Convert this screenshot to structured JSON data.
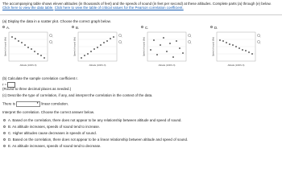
{
  "intro": "The accompanying table shows eleven altitudes (in thousands of feet) and the speeds of sound (in feet per second) at these altitudes. Complete parts (a) through (e) below.",
  "links": [
    "Click here to view the data table.",
    "Click here to view the table of critical values for the Pearson correlation coefficient."
  ],
  "part_a": {
    "prompt": "(a) Display the data in a scatter plot. Choose the correct graph below.",
    "options": [
      "A.",
      "B.",
      "C.",
      "D."
    ],
    "y_label": "Speed of sound (ft/s)",
    "x_label": "Altitude (1000's ft)"
  },
  "part_b": {
    "prompt": "(b) Calculate the sample correlation coefficient r.",
    "r_label": "r =",
    "note": "(Round to three decimal places as needed.)"
  },
  "part_c": {
    "prompt": "(c) Describe the type of correlation, if any, and interpret the correlation in the context of the data.",
    "sentence_start": "There is",
    "sentence_end": "linear correlation.",
    "interpret_prompt": "Interpret the correlation. Choose the correct answer below.",
    "options": [
      {
        "letter": "A.",
        "text": "Based on the correlation, there does not appear to be any relationship between altitude and speed of sound."
      },
      {
        "letter": "B.",
        "text": "As altitude increases, speeds of sound tend to increase."
      },
      {
        "letter": "C.",
        "text": "Higher altitudes cause decreases in speeds of sound."
      },
      {
        "letter": "D.",
        "text": "Based on the correlation, there does not appear to be a linear relationship between altitude and speed of sound."
      },
      {
        "letter": "E.",
        "text": "As altitude increases, speeds of sound tend to decrease."
      }
    ]
  }
}
